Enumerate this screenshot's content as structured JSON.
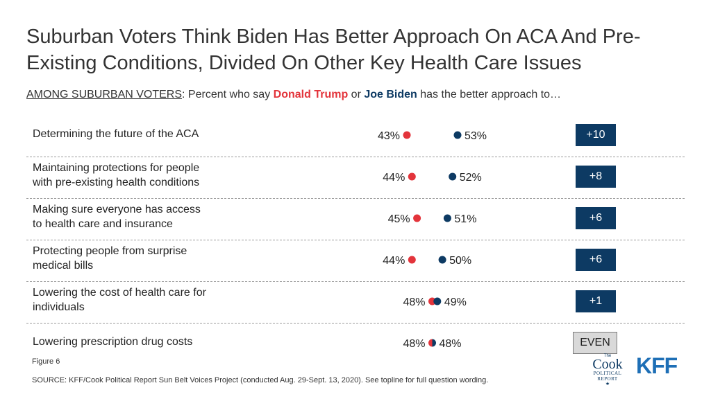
{
  "header": {
    "title": "Suburban Voters Think Biden Has Better Approach On ACA And Pre-Existing Conditions, Divided On Other Key Health Care Issues",
    "subtitle_lead": "AMONG SUBURBAN VOTERS",
    "subtitle_mid": ": Percent who say ",
    "subtitle_trump": "Donald Trump",
    "subtitle_or": " or ",
    "subtitle_biden": "Joe Biden",
    "subtitle_end": " has the better approach to…"
  },
  "colors": {
    "trump": "#e3343b",
    "biden": "#0d3a63",
    "even_bg": "#d9d9d9"
  },
  "chart_data": {
    "type": "scatter",
    "categories": [
      "Determining the future of the ACA",
      "Maintaining protections for people with pre-existing health conditions",
      "Making sure everyone has access to health care and insurance",
      "Protecting people from surprise medical bills",
      "Lowering the cost of health care for individuals",
      "Lowering prescription drug costs"
    ],
    "series": [
      {
        "name": "Donald Trump",
        "values": [
          43,
          44,
          45,
          44,
          48,
          48
        ]
      },
      {
        "name": "Joe Biden",
        "values": [
          53,
          52,
          51,
          50,
          49,
          48
        ]
      }
    ],
    "value_labels": {
      "trump": [
        "43%",
        "44%",
        "45%",
        "44%",
        "48%",
        "48%"
      ],
      "biden": [
        "53%",
        "52%",
        "51%",
        "50%",
        "49%",
        "48%"
      ]
    },
    "differences": [
      "+10",
      "+8",
      "+6",
      "+6",
      "+1",
      "EVEN"
    ],
    "labels_lines": [
      [
        "Determining the future of the ACA"
      ],
      [
        "Maintaining protections for people",
        "with pre-existing health conditions"
      ],
      [
        "Making sure everyone has access",
        "to health care and insurance"
      ],
      [
        "Protecting people from surprise",
        "medical bills"
      ],
      [
        "Lowering the cost of health care for",
        "individuals"
      ],
      [
        "Lowering prescription drug costs"
      ]
    ],
    "xlim": [
      40,
      56
    ],
    "grid": false,
    "legend": "none"
  },
  "footer": {
    "figure": "Figure 6",
    "source": "SOURCE: KFF/Cook Political Report Sun Belt Voices Project (conducted Aug. 29-Sept. 13, 2020). See topline for full question wording."
  },
  "logos": {
    "cook_the": "The",
    "cook_name": "Cook",
    "cook_political": "POLITICAL",
    "cook_report": "REPORT",
    "kff": "KFF"
  }
}
